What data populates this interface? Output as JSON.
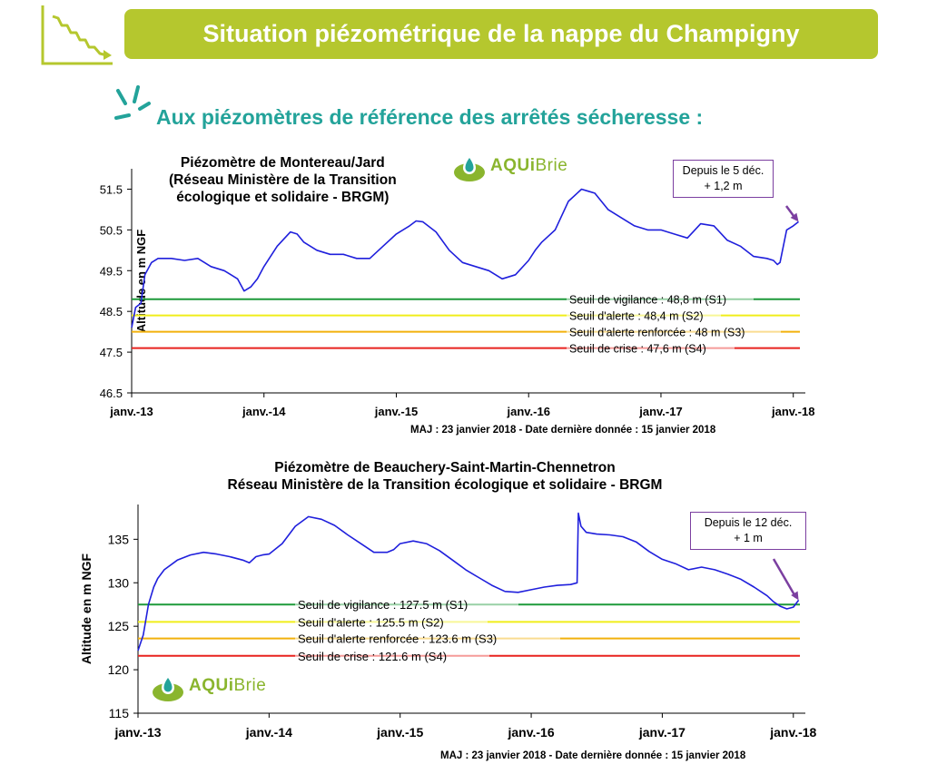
{
  "header": {
    "title": "Situation piézométrique de la nappe du Champigny",
    "subtitle": "Aux piézomètres de référence des arrêtés sécheresse :"
  },
  "colors": {
    "banner": "#b5c72e",
    "subtitle": "#23a39a",
    "series": "#1f1fdc",
    "vigilance": "#1e9a3a",
    "alerte": "#f0ee1a",
    "renforcee": "#f2b10c",
    "crise": "#e8221e",
    "callout": "#7b3fa0"
  },
  "logo": {
    "prefix": "AQUi",
    "suffix": "Brie"
  },
  "chart_data": [
    {
      "type": "line",
      "title": [
        "Piézomètre de Montereau/Jard",
        "(Réseau Ministère de la Transition",
        "écologique et solidaire - BRGM)"
      ],
      "ylabel": "Altitude en m NGF",
      "xlabel": "",
      "x_ticks": [
        "janv.-13",
        "janv.-14",
        "janv.-15",
        "janv.-16",
        "janv.-17",
        "janv.-18"
      ],
      "y_ticks": [
        "46.5",
        "47.5",
        "48.5",
        "49.5",
        "50.5",
        "51.5"
      ],
      "ylim": [
        46.5,
        52.0
      ],
      "xlim": [
        2013.0,
        2018.05
      ],
      "series": [
        {
          "x": [
            2013.0,
            2013.03,
            2013.07,
            2013.1,
            2013.15,
            2013.2,
            2013.3,
            2013.4,
            2013.5,
            2013.6,
            2013.7,
            2013.8,
            2013.85,
            2013.9,
            2013.95,
            2014.0,
            2014.1,
            2014.2,
            2014.25,
            2014.3,
            2014.4,
            2014.5,
            2014.6,
            2014.7,
            2014.8,
            2014.9,
            2015.0,
            2015.1,
            2015.15,
            2015.2,
            2015.3,
            2015.4,
            2015.5,
            2015.6,
            2015.7,
            2015.8,
            2015.9,
            2016.0,
            2016.05,
            2016.1,
            2016.2,
            2016.3,
            2016.4,
            2016.45,
            2016.5,
            2016.6,
            2016.7,
            2016.8,
            2016.9,
            2017.0,
            2017.1,
            2017.2,
            2017.3,
            2017.4,
            2017.5,
            2017.6,
            2017.7,
            2017.8,
            2017.85,
            2017.88,
            2017.9,
            2017.95,
            2018.0,
            2018.04
          ],
          "values": [
            48.1,
            48.6,
            48.7,
            49.4,
            49.7,
            49.8,
            49.8,
            49.75,
            49.8,
            49.6,
            49.5,
            49.3,
            49.0,
            49.1,
            49.3,
            49.6,
            50.1,
            50.45,
            50.4,
            50.2,
            50.0,
            49.9,
            49.9,
            49.8,
            49.8,
            50.1,
            50.4,
            50.6,
            50.72,
            50.7,
            50.45,
            50.0,
            49.7,
            49.6,
            49.5,
            49.3,
            49.4,
            49.75,
            50.0,
            50.2,
            50.5,
            51.2,
            51.5,
            51.45,
            51.4,
            51.0,
            50.8,
            50.6,
            50.5,
            50.5,
            50.4,
            50.3,
            50.65,
            50.6,
            50.25,
            50.1,
            49.85,
            49.8,
            49.75,
            49.65,
            49.7,
            50.5,
            50.6,
            50.7
          ]
        }
      ],
      "thresholds": [
        {
          "value": 48.8,
          "label": "Seuil de vigilance : 48,8 m (S1)"
        },
        {
          "value": 48.4,
          "label": "Seuil d'alerte : 48,4 m (S2)"
        },
        {
          "value": 48.0,
          "label": "Seuil d'alerte renforcée : 48 m (S3)"
        },
        {
          "value": 47.6,
          "label": "Seuil de crise : 47,6 m (S4)"
        }
      ],
      "annotation": [
        "Depuis le 5 déc.",
        "+ 1,2 m"
      ],
      "footer": "MAJ : 23 janvier 2018  -  Date dernière donnée  :  15 janvier 2018"
    },
    {
      "type": "line",
      "title": [
        "Piézomètre de Beauchery-Saint-Martin-Chennetron",
        "Réseau Ministère de la Transition écologique et solidaire - BRGM"
      ],
      "ylabel": "Altitude en m NGF",
      "xlabel": "",
      "x_ticks": [
        "janv.-13",
        "janv.-14",
        "janv.-15",
        "janv.-16",
        "janv.-17",
        "janv.-18"
      ],
      "y_ticks": [
        "115",
        "120",
        "125",
        "130",
        "135"
      ],
      "ylim": [
        115,
        139
      ],
      "xlim": [
        2013.0,
        2018.05
      ],
      "series": [
        {
          "x": [
            2013.0,
            2013.04,
            2013.08,
            2013.12,
            2013.15,
            2013.2,
            2013.3,
            2013.4,
            2013.5,
            2013.6,
            2013.7,
            2013.8,
            2013.85,
            2013.9,
            2013.95,
            2014.0,
            2014.1,
            2014.2,
            2014.3,
            2014.4,
            2014.5,
            2014.6,
            2014.7,
            2014.8,
            2014.9,
            2014.95,
            2015.0,
            2015.1,
            2015.2,
            2015.3,
            2015.4,
            2015.5,
            2015.6,
            2015.7,
            2015.8,
            2015.9,
            2016.0,
            2016.1,
            2016.2,
            2016.3,
            2016.35,
            2016.36,
            2016.38,
            2016.42,
            2016.5,
            2016.6,
            2016.7,
            2016.8,
            2016.9,
            2017.0,
            2017.1,
            2017.2,
            2017.3,
            2017.4,
            2017.5,
            2017.6,
            2017.7,
            2017.8,
            2017.85,
            2017.9,
            2017.95,
            2018.0,
            2018.04
          ],
          "values": [
            122.2,
            124.0,
            127.5,
            129.5,
            130.5,
            131.5,
            132.6,
            133.2,
            133.5,
            133.3,
            133.0,
            132.6,
            132.3,
            133.0,
            133.2,
            133.3,
            134.5,
            136.5,
            137.6,
            137.3,
            136.6,
            135.5,
            134.5,
            133.5,
            133.5,
            133.8,
            134.5,
            134.8,
            134.5,
            133.7,
            132.6,
            131.5,
            130.6,
            129.7,
            129.0,
            128.9,
            129.2,
            129.5,
            129.7,
            129.8,
            130.0,
            138.0,
            136.5,
            135.8,
            135.6,
            135.5,
            135.3,
            134.7,
            133.6,
            132.7,
            132.2,
            131.5,
            131.8,
            131.5,
            131.0,
            130.4,
            129.5,
            128.5,
            127.8,
            127.3,
            127.0,
            127.2,
            128.0
          ]
        }
      ],
      "thresholds": [
        {
          "value": 127.5,
          "label": "Seuil de vigilance : 127.5 m (S1)"
        },
        {
          "value": 125.5,
          "label": "Seuil d'alerte : 125.5 m (S2)"
        },
        {
          "value": 123.6,
          "label": "Seuil d'alerte renforcée : 123.6 m (S3)"
        },
        {
          "value": 121.6,
          "label": "Seuil de crise : 121.6 m (S4)"
        }
      ],
      "annotation": [
        "Depuis le 12 déc.",
        "+ 1 m"
      ],
      "footer": "MAJ : 23 janvier 2018 -  Date dernière donnée : 15 janvier 2018"
    }
  ]
}
